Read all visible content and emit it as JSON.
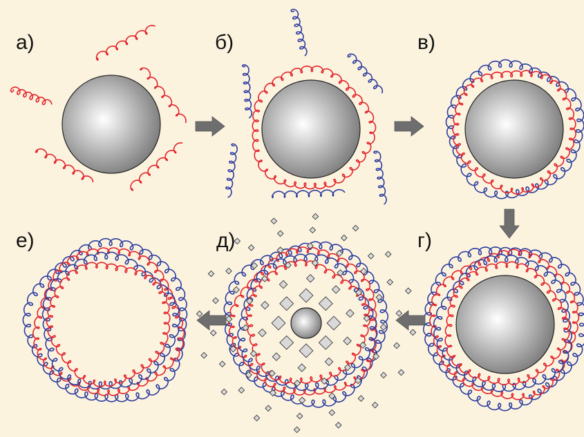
{
  "labels": {
    "a": "а)",
    "b": "б)",
    "v": "в)",
    "g": "г)",
    "d": "д)",
    "e": "е)"
  },
  "colors": {
    "background": "#fcf3df",
    "red_polymer": "#e3232a",
    "blue_polymer": "#2b3c9e",
    "arrow": "#6e6e6e",
    "particle_edge": "#222222",
    "particle_light": "#ffffff",
    "particle_dark": "#777777",
    "fragment_fill": "#d9d9d9"
  },
  "panels": [
    {
      "key": "a",
      "core": true,
      "red_layers": 0,
      "blue_layers": 0,
      "free_chains": "red"
    },
    {
      "key": "b",
      "core": true,
      "red_layers": 1,
      "blue_layers": 0,
      "free_chains": "blue"
    },
    {
      "key": "v",
      "core": true,
      "red_layers": 1,
      "blue_layers": 1,
      "free_chains": "none"
    },
    {
      "key": "g",
      "core": true,
      "red_layers": 2,
      "blue_layers": 2,
      "free_chains": "none"
    },
    {
      "key": "d",
      "core": "dissolving",
      "red_layers": 2,
      "blue_layers": 2,
      "free_chains": "none"
    },
    {
      "key": "e",
      "core": false,
      "red_layers": 2,
      "blue_layers": 2,
      "free_chains": "none"
    }
  ],
  "arrows": [
    {
      "from": "a",
      "to": "b",
      "direction": "right"
    },
    {
      "from": "b",
      "to": "v",
      "direction": "right"
    },
    {
      "from": "v",
      "to": "g",
      "direction": "down"
    },
    {
      "from": "g",
      "to": "d",
      "direction": "left"
    },
    {
      "from": "d",
      "to": "e",
      "direction": "left"
    }
  ]
}
